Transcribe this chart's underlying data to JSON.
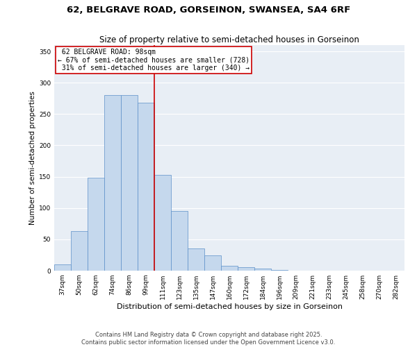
{
  "title1": "62, BELGRAVE ROAD, GORSEINON, SWANSEA, SA4 6RF",
  "title2": "Size of property relative to semi-detached houses in Gorseinon",
  "xlabel": "Distribution of semi-detached houses by size in Gorseinon",
  "ylabel": "Number of semi-detached properties",
  "footer1": "Contains HM Land Registry data © Crown copyright and database right 2025.",
  "footer2": "Contains public sector information licensed under the Open Government Licence v3.0.",
  "categories": [
    "37sqm",
    "50sqm",
    "62sqm",
    "74sqm",
    "86sqm",
    "99sqm",
    "111sqm",
    "123sqm",
    "135sqm",
    "147sqm",
    "160sqm",
    "172sqm",
    "184sqm",
    "196sqm",
    "209sqm",
    "221sqm",
    "233sqm",
    "245sqm",
    "258sqm",
    "270sqm",
    "282sqm"
  ],
  "bar_heights": [
    10,
    63,
    148,
    280,
    280,
    268,
    153,
    95,
    35,
    24,
    8,
    5,
    3,
    1,
    0,
    0,
    0,
    0,
    0,
    0,
    0
  ],
  "property_label": "62 BELGRAVE ROAD: 98sqm",
  "pct_smaller": 67,
  "count_smaller": 728,
  "pct_larger": 31,
  "count_larger": 340,
  "property_line_x": 6,
  "bar_color": "#c5d8ed",
  "bar_edge_color": "#5b8fc9",
  "marker_color": "#cc0000",
  "annotation_box_color": "#cc0000",
  "background_color": "#e8eef5",
  "ylim": [
    0,
    360
  ],
  "yticks": [
    0,
    50,
    100,
    150,
    200,
    250,
    300,
    350
  ],
  "title1_fontsize": 9.5,
  "title2_fontsize": 8.5,
  "xlabel_fontsize": 8,
  "ylabel_fontsize": 7.5,
  "tick_fontsize": 6.5,
  "footer_fontsize": 6,
  "ann_fontsize": 7
}
